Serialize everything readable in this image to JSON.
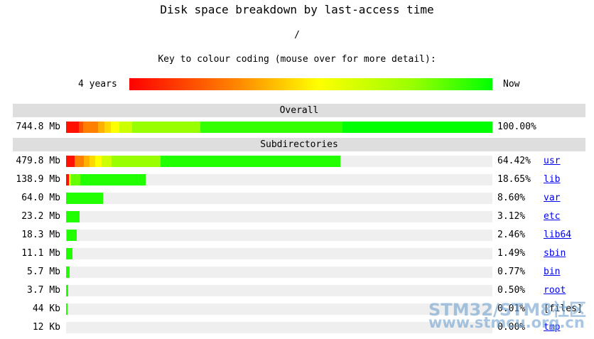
{
  "page": {
    "title": "Disk space breakdown by last-access time",
    "path": "/",
    "key_title": "Key to colour coding (mouse over for more detail):",
    "key_left": "4 years",
    "key_right": "Now",
    "overall_label": "Overall",
    "subdirs_label": "Subdirectories"
  },
  "watermark": {
    "line1": "STM32/STM8社区",
    "line2": "www.stmcu.org.cn"
  },
  "chart_data": {
    "type": "bar",
    "title": "Disk space breakdown by last-access time",
    "colour_scale": {
      "left": "4 years",
      "right": "Now"
    },
    "overall": {
      "size": "744.8 Mb",
      "percent_text": "100.00%",
      "percent": 100.0,
      "segments": [
        {
          "pct": 3.0,
          "color": "#ff1000"
        },
        {
          "pct": 1.0,
          "color": "#ff5000"
        },
        {
          "pct": 3.5,
          "color": "#ff8000"
        },
        {
          "pct": 1.5,
          "color": "#ffb000"
        },
        {
          "pct": 1.5,
          "color": "#ffd800"
        },
        {
          "pct": 2.0,
          "color": "#ffff00"
        },
        {
          "pct": 3.0,
          "color": "#ccff00"
        },
        {
          "pct": 16.0,
          "color": "#99ff00"
        },
        {
          "pct": 33.3,
          "color": "#33ff00"
        },
        {
          "pct": 35.2,
          "color": "#00ff00"
        }
      ]
    },
    "rows": [
      {
        "size": "479.8 Mb",
        "percent_text": "64.42%",
        "percent": 64.42,
        "name": "usr",
        "link": true,
        "segments": [
          {
            "pct": 3.0,
            "color": "#ff1000"
          },
          {
            "pct": 3.5,
            "color": "#ff8000"
          },
          {
            "pct": 2.0,
            "color": "#ffb000"
          },
          {
            "pct": 2.0,
            "color": "#ffd800"
          },
          {
            "pct": 2.5,
            "color": "#ffff00"
          },
          {
            "pct": 3.5,
            "color": "#ccff00"
          },
          {
            "pct": 18.0,
            "color": "#99ff00"
          },
          {
            "pct": 65.5,
            "color": "#22ff00"
          }
        ]
      },
      {
        "size": "138.9 Mb",
        "percent_text": "18.65%",
        "percent": 18.65,
        "name": "lib",
        "link": true,
        "segments": [
          {
            "pct": 3.5,
            "color": "#ff1000"
          },
          {
            "pct": 3.0,
            "color": "#ccff00"
          },
          {
            "pct": 11.0,
            "color": "#66ff00"
          },
          {
            "pct": 82.5,
            "color": "#22ff00"
          }
        ]
      },
      {
        "size": "64.0 Mb",
        "percent_text": "8.60%",
        "percent": 8.6,
        "name": "var",
        "link": true,
        "segments": [
          {
            "pct": 100,
            "color": "#22ff00"
          }
        ]
      },
      {
        "size": "23.2 Mb",
        "percent_text": "3.12%",
        "percent": 3.12,
        "name": "etc",
        "link": true,
        "segments": [
          {
            "pct": 8,
            "color": "#99cc00"
          },
          {
            "pct": 92,
            "color": "#22ff00"
          }
        ]
      },
      {
        "size": "18.3 Mb",
        "percent_text": "2.46%",
        "percent": 2.46,
        "name": "lib64",
        "link": true,
        "segments": [
          {
            "pct": 10,
            "color": "#99ff00"
          },
          {
            "pct": 90,
            "color": "#22ff00"
          }
        ]
      },
      {
        "size": "11.1 Mb",
        "percent_text": "1.49%",
        "percent": 1.49,
        "name": "sbin",
        "link": true,
        "segments": [
          {
            "pct": 100,
            "color": "#22ff00"
          }
        ]
      },
      {
        "size": "5.7 Mb",
        "percent_text": "0.77%",
        "percent": 0.77,
        "name": "bin",
        "link": true,
        "segments": [
          {
            "pct": 100,
            "color": "#22ff00"
          }
        ]
      },
      {
        "size": "3.7 Mb",
        "percent_text": "0.50%",
        "percent": 0.5,
        "name": "root",
        "link": true,
        "segments": [
          {
            "pct": 100,
            "color": "#22ff00"
          }
        ]
      },
      {
        "size": "44 Kb",
        "percent_text": "0.01%",
        "percent": 0.01,
        "name": "[files]",
        "link": false,
        "segments": [
          {
            "pct": 100,
            "color": "#22ff00"
          }
        ]
      },
      {
        "size": "12 Kb",
        "percent_text": "0.00%",
        "percent": 0.0,
        "name": "tmp",
        "link": true,
        "segments": [
          {
            "pct": 100,
            "color": "#22ff00"
          }
        ]
      }
    ]
  }
}
